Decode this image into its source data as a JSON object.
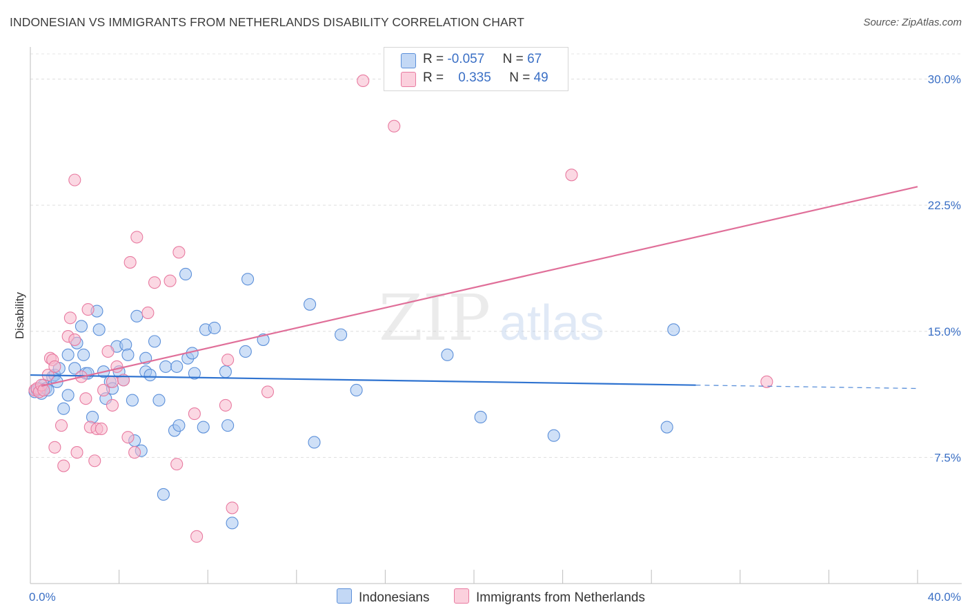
{
  "header": {
    "title": "INDONESIAN VS IMMIGRANTS FROM NETHERLANDS DISABILITY CORRELATION CHART",
    "source": "Source: ZipAtlas.com"
  },
  "watermark": {
    "zip": "ZIP",
    "atlas": "atlas"
  },
  "legend": {
    "rows": [
      {
        "r_label": "R =",
        "r_value": "-0.057",
        "n_label": "N =",
        "n_value": "67",
        "color": "#a8c6f0"
      },
      {
        "r_label": "R =",
        "r_value": "0.335",
        "n_label": "N =",
        "n_value": "49",
        "color": "#f7b8cc"
      }
    ]
  },
  "bottom_legend": [
    {
      "label": "Indonesians",
      "color": "#a8c6f0"
    },
    {
      "label": "Immigrants from Netherlands",
      "color": "#f7b8cc"
    }
  ],
  "chart_data": {
    "type": "scatter",
    "title": "INDONESIAN VS IMMIGRANTS FROM NETHERLANDS DISABILITY CORRELATION CHART",
    "ylabel": "Disability",
    "xlabel": "",
    "xlim": [
      0,
      40
    ],
    "ylim": [
      0,
      31.5
    ],
    "x_tick_labels": [
      {
        "value": 0,
        "label": "0.0%"
      },
      {
        "value": 40,
        "label": "40.0%"
      }
    ],
    "x_minor_ticks": [
      0,
      4,
      8,
      12,
      16,
      20,
      24,
      28,
      32,
      36,
      40
    ],
    "y_ticks": [
      {
        "value": 7.5,
        "label": "7.5%"
      },
      {
        "value": 15.0,
        "label": "15.0%"
      },
      {
        "value": 22.5,
        "label": "22.5%"
      },
      {
        "value": 30.0,
        "label": "30.0%"
      }
    ],
    "grid": true,
    "series": [
      {
        "name": "Indonesians",
        "color": "#5b8fd9",
        "fill": "#a8c6f0",
        "points": [
          [
            0.2,
            11.4
          ],
          [
            0.3,
            11.5
          ],
          [
            0.4,
            11.6
          ],
          [
            0.5,
            11.3
          ],
          [
            0.6,
            11.8
          ],
          [
            0.7,
            11.6
          ],
          [
            0.8,
            11.5
          ],
          [
            1.0,
            12.3
          ],
          [
            1.1,
            12.4
          ],
          [
            1.2,
            12.0
          ],
          [
            1.3,
            12.8
          ],
          [
            1.5,
            10.4
          ],
          [
            1.7,
            11.2
          ],
          [
            1.7,
            13.6
          ],
          [
            2.0,
            12.8
          ],
          [
            2.1,
            14.3
          ],
          [
            2.3,
            15.3
          ],
          [
            2.4,
            13.6
          ],
          [
            2.5,
            12.5
          ],
          [
            2.6,
            12.5
          ],
          [
            2.8,
            9.9
          ],
          [
            3.0,
            16.2
          ],
          [
            3.1,
            15.1
          ],
          [
            3.3,
            12.6
          ],
          [
            3.4,
            11.0
          ],
          [
            3.6,
            12.0
          ],
          [
            3.7,
            11.6
          ],
          [
            3.9,
            14.1
          ],
          [
            4.0,
            12.6
          ],
          [
            4.2,
            12.1
          ],
          [
            4.3,
            14.2
          ],
          [
            4.4,
            13.6
          ],
          [
            4.6,
            10.9
          ],
          [
            4.7,
            8.5
          ],
          [
            4.8,
            15.9
          ],
          [
            5.0,
            7.9
          ],
          [
            5.2,
            12.6
          ],
          [
            5.2,
            13.4
          ],
          [
            5.4,
            12.4
          ],
          [
            5.6,
            14.4
          ],
          [
            5.8,
            10.9
          ],
          [
            6.0,
            5.3
          ],
          [
            6.1,
            12.9
          ],
          [
            6.5,
            9.1
          ],
          [
            6.6,
            12.9
          ],
          [
            6.7,
            9.4
          ],
          [
            7.0,
            18.4
          ],
          [
            7.1,
            13.4
          ],
          [
            7.3,
            13.7
          ],
          [
            7.4,
            12.5
          ],
          [
            7.8,
            9.3
          ],
          [
            7.9,
            15.1
          ],
          [
            8.3,
            15.2
          ],
          [
            8.8,
            12.6
          ],
          [
            8.9,
            9.4
          ],
          [
            9.1,
            3.6
          ],
          [
            9.7,
            13.8
          ],
          [
            9.8,
            18.1
          ],
          [
            10.5,
            14.5
          ],
          [
            12.6,
            16.6
          ],
          [
            12.8,
            8.4
          ],
          [
            14.0,
            14.8
          ],
          [
            14.7,
            11.5
          ],
          [
            18.8,
            13.6
          ],
          [
            20.3,
            9.9
          ],
          [
            23.6,
            8.8
          ],
          [
            28.7,
            9.3
          ],
          [
            29.0,
            15.1
          ]
        ]
      },
      {
        "name": "Immigrants from Netherlands",
        "color": "#e87aa0",
        "fill": "#f7b8cc",
        "points": [
          [
            0.2,
            11.5
          ],
          [
            0.3,
            11.6
          ],
          [
            0.4,
            11.4
          ],
          [
            0.5,
            11.8
          ],
          [
            0.6,
            11.5
          ],
          [
            0.8,
            12.4
          ],
          [
            0.9,
            13.4
          ],
          [
            1.0,
            13.3
          ],
          [
            1.1,
            12.9
          ],
          [
            1.1,
            8.1
          ],
          [
            1.4,
            9.4
          ],
          [
            1.5,
            7.0
          ],
          [
            1.7,
            14.7
          ],
          [
            1.8,
            15.8
          ],
          [
            2.0,
            14.5
          ],
          [
            2.1,
            7.8
          ],
          [
            2.3,
            12.3
          ],
          [
            2.5,
            11.0
          ],
          [
            2.6,
            16.3
          ],
          [
            2.7,
            9.3
          ],
          [
            2.9,
            7.3
          ],
          [
            3.0,
            9.2
          ],
          [
            3.2,
            9.2
          ],
          [
            3.3,
            11.5
          ],
          [
            3.5,
            13.8
          ],
          [
            3.7,
            12.0
          ],
          [
            3.7,
            10.6
          ],
          [
            3.9,
            12.9
          ],
          [
            4.2,
            12.1
          ],
          [
            4.4,
            8.7
          ],
          [
            4.5,
            19.1
          ],
          [
            4.7,
            7.8
          ],
          [
            4.8,
            20.6
          ],
          [
            5.3,
            16.1
          ],
          [
            5.6,
            17.9
          ],
          [
            6.3,
            18.0
          ],
          [
            6.6,
            7.1
          ],
          [
            6.7,
            19.7
          ],
          [
            7.4,
            10.1
          ],
          [
            7.5,
            2.8
          ],
          [
            8.8,
            10.6
          ],
          [
            8.9,
            13.3
          ],
          [
            9.1,
            4.5
          ],
          [
            10.7,
            11.4
          ],
          [
            15.0,
            29.9
          ],
          [
            16.4,
            27.2
          ],
          [
            24.4,
            24.3
          ],
          [
            33.2,
            12.0
          ],
          [
            2.0,
            24.0
          ]
        ]
      }
    ],
    "trendlines": [
      {
        "series": "Indonesians",
        "x_solid": [
          0,
          30
        ],
        "x_dashed": [
          30,
          40
        ],
        "y_at_0": 12.4,
        "y_at_40": 11.6,
        "color": "#2f73d0"
      },
      {
        "series": "Immigrants from Netherlands",
        "x_solid": [
          0.5,
          40
        ],
        "y_at_0": 11.6,
        "y_at_40": 23.6,
        "color": "#e06f99"
      }
    ],
    "legend_placement": "top-center"
  }
}
